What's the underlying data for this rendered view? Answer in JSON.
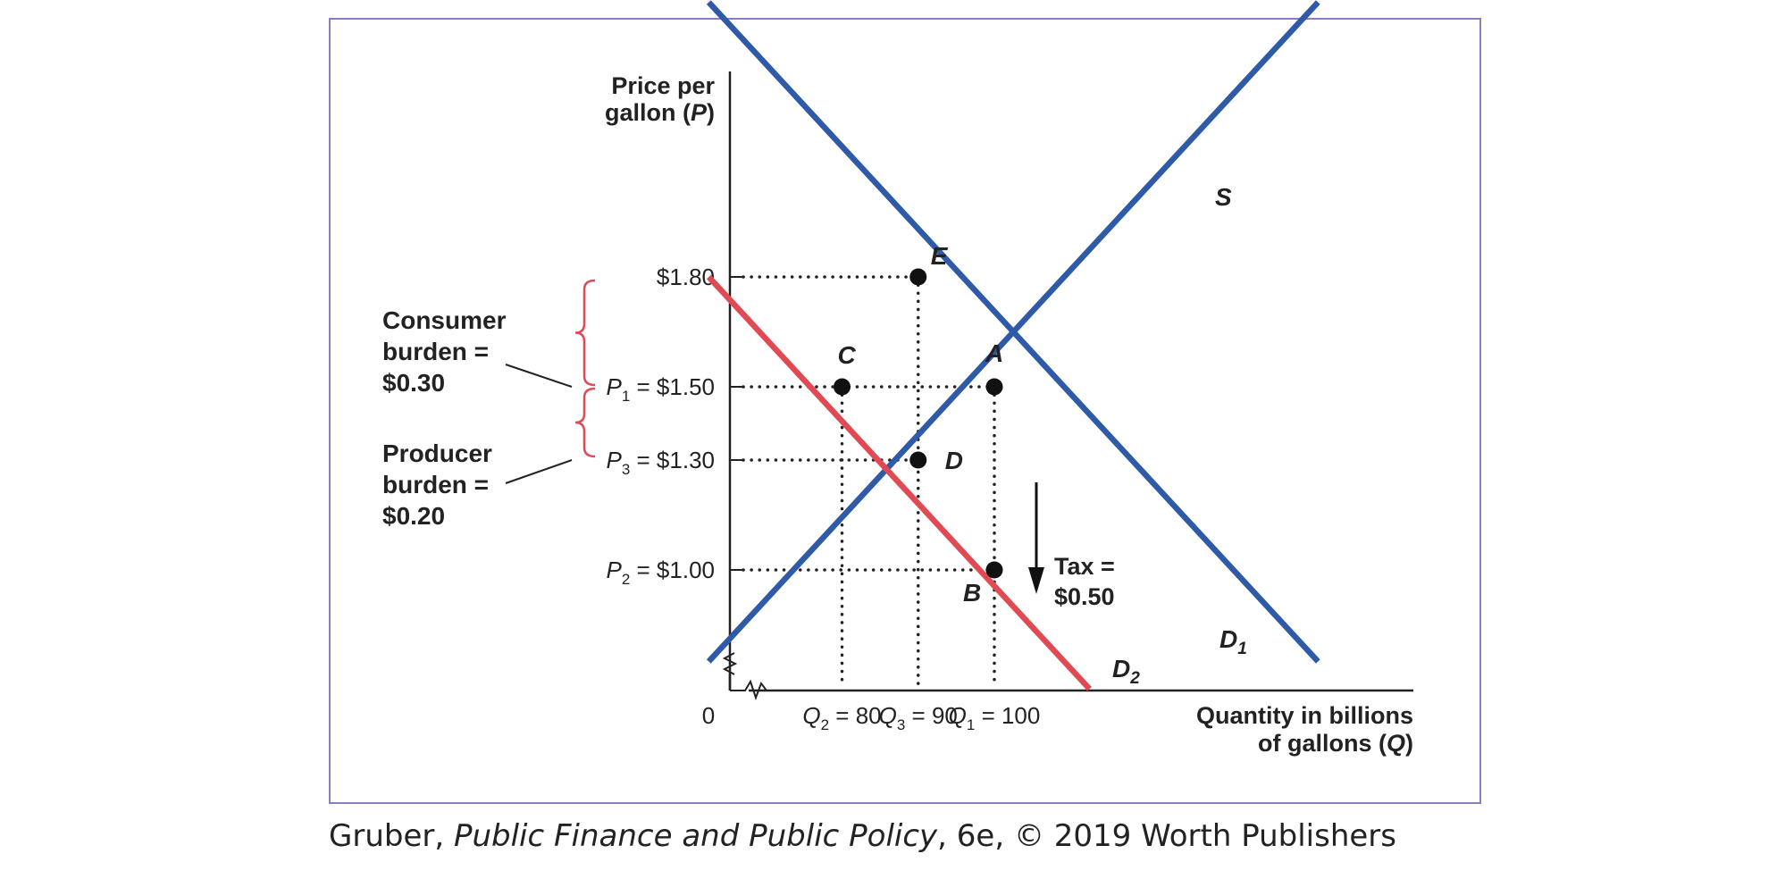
{
  "chart_data": {
    "type": "line",
    "ylabel_lines": [
      "Price per",
      "gallon (P)"
    ],
    "xlabel_lines": [
      "Quantity in billions",
      "of gallons (Q)"
    ],
    "origin_label": "0",
    "price_ticks": [
      {
        "value": 1.8,
        "label": "$1.80",
        "prefix": "",
        "sub": ""
      },
      {
        "value": 1.5,
        "label": " = $1.50",
        "prefix": "P",
        "sub": "1"
      },
      {
        "value": 1.3,
        "label": " = $1.30",
        "prefix": "P",
        "sub": "3"
      },
      {
        "value": 1.0,
        "label": " = $1.00",
        "prefix": "P",
        "sub": "2"
      }
    ],
    "quantity_ticks": [
      {
        "value": 80,
        "prefix": "Q",
        "sub": "2",
        "label": " = 80"
      },
      {
        "value": 90,
        "prefix": "Q",
        "sub": "3",
        "label": " = 90"
      },
      {
        "value": 100,
        "prefix": "Q",
        "sub": "1",
        "label": " = 100"
      }
    ],
    "series": [
      {
        "name": "S",
        "color": "#2f5aa8",
        "points": [
          [
            62.5,
            0.75
          ],
          [
            142.5,
            2.55
          ]
        ]
      },
      {
        "name": "D",
        "sub": "1",
        "color": "#2f5aa8",
        "points": [
          [
            62.5,
            2.55
          ],
          [
            142.5,
            0.75
          ]
        ]
      },
      {
        "name": "D",
        "sub": "2",
        "color": "#e04a55",
        "points": [
          [
            62.5,
            1.8
          ],
          [
            112.5,
            0.675
          ]
        ]
      }
    ],
    "points": [
      {
        "label": "E",
        "x": 90,
        "y": 1.8
      },
      {
        "label": "A",
        "x": 100,
        "y": 1.5
      },
      {
        "label": "C",
        "x": 80,
        "y": 1.5
      },
      {
        "label": "D",
        "x": 90,
        "y": 1.3
      },
      {
        "label": "B",
        "x": 100,
        "y": 1.0
      }
    ],
    "annotations": {
      "tax": [
        "Tax =",
        "$0.50"
      ],
      "consumer_burden": [
        "Consumer",
        "burden =",
        "$0.30"
      ],
      "producer_burden": [
        "Producer",
        "burden =",
        "$0.20"
      ]
    },
    "colors": {
      "supply_demand": "#2f5aa8",
      "taxed_demand": "#e04a55",
      "brace": "#e04a55",
      "frame": "#8e7cc3"
    }
  },
  "caption": {
    "prefix": "Gruber, ",
    "italic": "Public Finance and Public Policy",
    "suffix": ", 6e, © 2019 Worth Publishers"
  }
}
